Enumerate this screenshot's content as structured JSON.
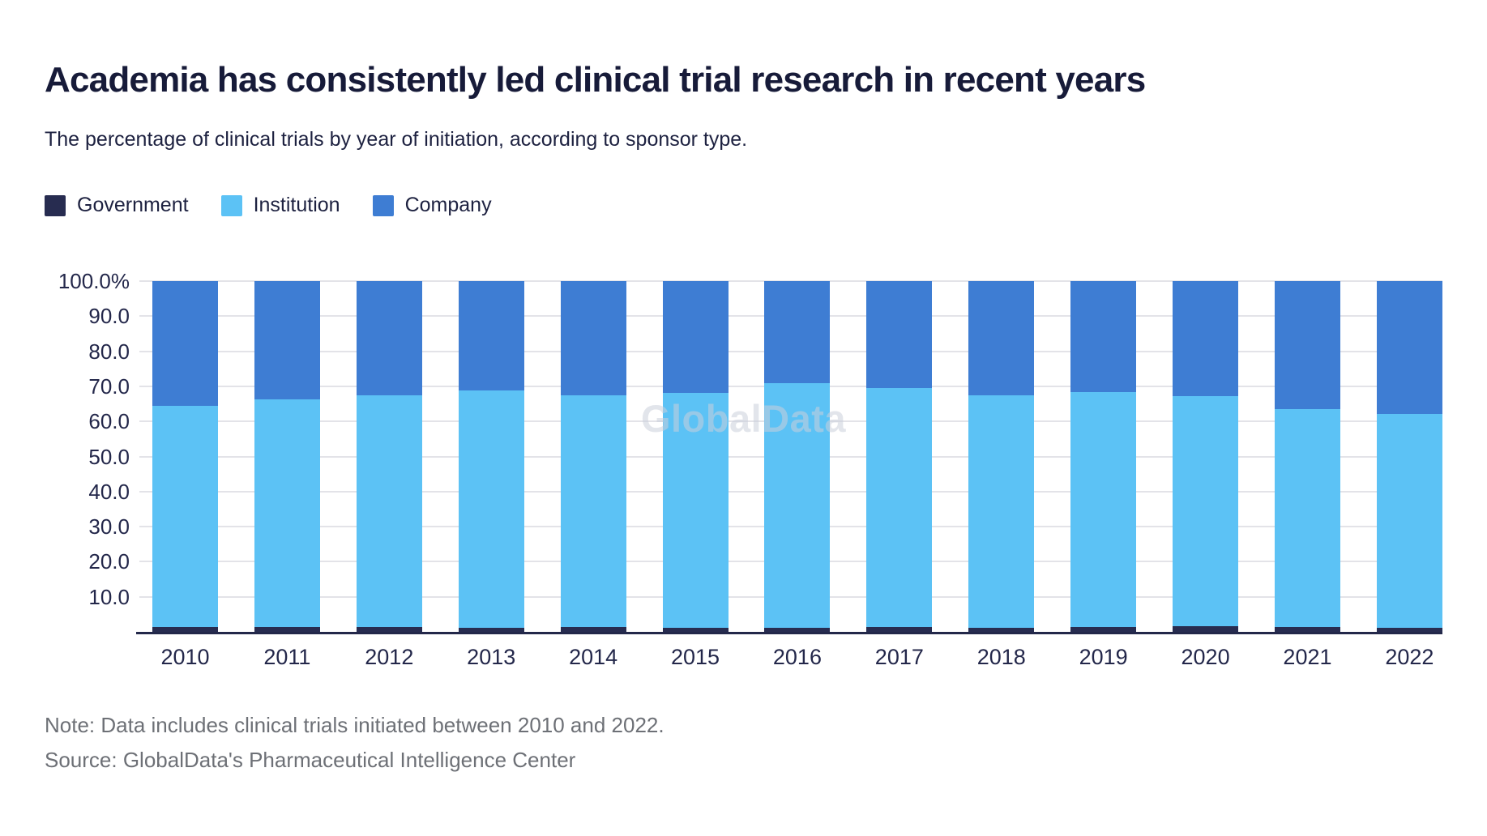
{
  "header": {
    "title": "Academia has consistently led clinical trial research in recent years",
    "subtitle": "The percentage of clinical trials by year of initiation, according to sponsor type."
  },
  "legend": {
    "items": [
      {
        "label": "Government",
        "color": "#272c50"
      },
      {
        "label": "Institution",
        "color": "#5cc2f5"
      },
      {
        "label": "Company",
        "color": "#3e7dd3"
      }
    ]
  },
  "chart_data": {
    "type": "bar",
    "stacked": true,
    "unit": "%",
    "title": "Academia has consistently led clinical trial research in recent years",
    "subtitle": "The percentage of clinical trials by year of initiation, according to sponsor type.",
    "categories": [
      "2010",
      "2011",
      "2012",
      "2013",
      "2014",
      "2015",
      "2016",
      "2017",
      "2018",
      "2019",
      "2020",
      "2021",
      "2022"
    ],
    "series": [
      {
        "name": "Government",
        "color": "#272c50",
        "values": [
          1.4,
          1.3,
          1.3,
          1.2,
          1.3,
          1.2,
          1.2,
          1.4,
          1.2,
          1.3,
          1.6,
          1.3,
          1.2
        ]
      },
      {
        "name": "Institution",
        "color": "#5cc2f5",
        "values": [
          63.1,
          64.9,
          66.1,
          67.7,
          66.2,
          67.0,
          69.7,
          68.2,
          66.2,
          67.1,
          65.7,
          62.3,
          61.0
        ]
      },
      {
        "name": "Company",
        "color": "#3e7dd3",
        "values": [
          35.5,
          33.8,
          32.6,
          31.1,
          32.5,
          31.8,
          29.1,
          30.4,
          32.6,
          31.6,
          32.7,
          36.4,
          37.8
        ]
      }
    ],
    "yticks": [
      "100.0%",
      "90.0",
      "80.0",
      "70.0",
      "60.0",
      "50.0",
      "40.0",
      "30.0",
      "20.0",
      "10.0"
    ],
    "ytick_values": [
      100,
      90,
      80,
      70,
      60,
      50,
      40,
      30,
      20,
      10
    ],
    "ylim": [
      0,
      100
    ],
    "grid": true,
    "legend_position": "top-left",
    "watermark": "GlobalData"
  },
  "footer": {
    "note": "Note: Data includes clinical trials initiated between 2010 and 2022.",
    "source": "Source: GlobalData's Pharmaceutical Intelligence Center"
  }
}
